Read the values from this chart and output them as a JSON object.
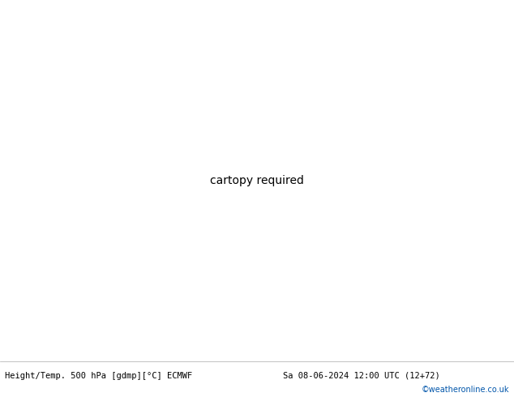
{
  "title_left": "Height/Temp. 500 hPa [gdmp][°C] ECMWF",
  "title_right": "Sa 08-06-2024 12:00 UTC (12+72)",
  "watermark": "©weatheronline.co.uk",
  "watermark_color": "#0055aa",
  "bg_color": "#d4d4d4",
  "land_color": "#c8f0c8",
  "land_border_color": "#999999",
  "fig_width": 6.34,
  "fig_height": 4.9,
  "dpi": 100,
  "bottom_bar_color": "#ffffff",
  "bottom_text_color": "#000000",
  "extent": [
    80,
    200,
    -58,
    10
  ],
  "geo_color": "#000000",
  "temp_red": "#dd0000",
  "temp_orange": "#ff8800",
  "temp_green_lime": "#88cc00",
  "temp_cyan": "#00bbbb",
  "temp_green_dark": "#008800"
}
